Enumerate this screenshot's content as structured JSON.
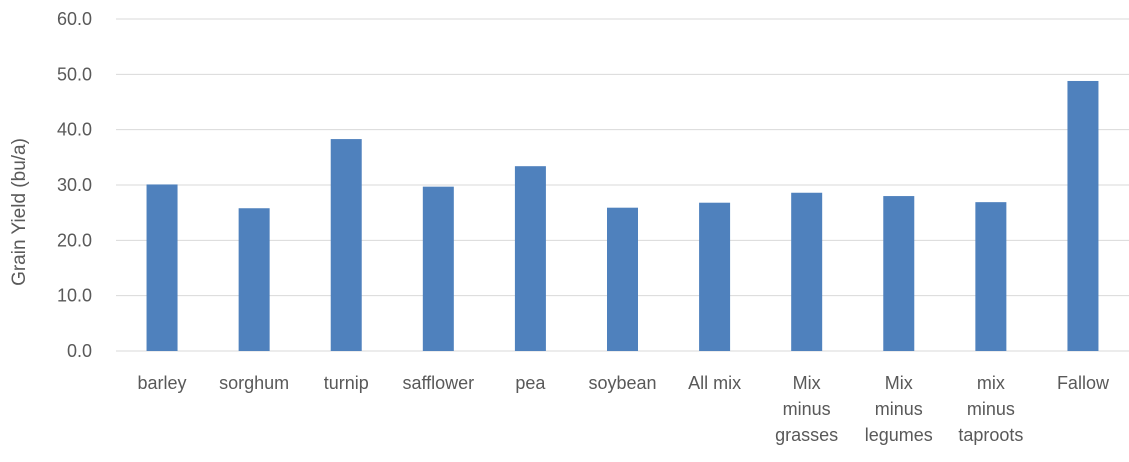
{
  "chart_data": {
    "type": "bar",
    "title": "",
    "xlabel": "",
    "ylabel": "Grain Yield (bu/a)",
    "ylim": [
      0,
      60
    ],
    "y_ticks": [
      "0.0",
      "10.0",
      "20.0",
      "30.0",
      "40.0",
      "50.0",
      "60.0"
    ],
    "grid": true,
    "legend": "none",
    "bar_color": "#4f81bd",
    "grid_color": "#d9d9d9",
    "categories": [
      [
        "barley"
      ],
      [
        "sorghum"
      ],
      [
        "turnip"
      ],
      [
        "safflower"
      ],
      [
        "pea"
      ],
      [
        "soybean"
      ],
      [
        "All mix"
      ],
      [
        "Mix",
        "minus",
        "grasses"
      ],
      [
        "Mix",
        "minus",
        "legumes"
      ],
      [
        "mix",
        "minus",
        "taproots"
      ],
      [
        "Fallow"
      ]
    ],
    "values": [
      30.1,
      25.8,
      38.3,
      29.7,
      33.4,
      25.9,
      26.8,
      28.6,
      28.0,
      26.9,
      48.8
    ]
  }
}
